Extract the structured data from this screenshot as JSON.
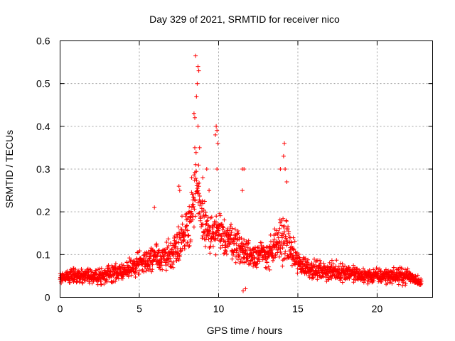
{
  "chart_data": {
    "type": "scatter",
    "title": "Day 329 of 2021, SRMTID for receiver nico",
    "xlabel": "GPS time / hours",
    "ylabel": "SRMTID / TECUs",
    "xlim": [
      0,
      23.5
    ],
    "ylim": [
      0,
      0.6
    ],
    "xticks": [
      0,
      5,
      10,
      15,
      20
    ],
    "xtick_labels": [
      "0",
      "5",
      "10",
      "15",
      "20"
    ],
    "yticks": [
      0,
      0.1,
      0.2,
      0.3,
      0.4,
      0.5,
      0.6
    ],
    "ytick_labels": [
      "0",
      "0.1",
      "0.2",
      "0.3",
      "0.4",
      "0.5",
      "0.6"
    ],
    "grid": true,
    "marker": "+",
    "series": [
      {
        "name": "nico",
        "color": "#ff0000",
        "profile": {
          "t": [
            0,
            1,
            2,
            3,
            4,
            5,
            6,
            7,
            7.5,
            8,
            8.3,
            8.6,
            9,
            9.5,
            9.9,
            10.5,
            11,
            11.5,
            12,
            12.5,
            13,
            13.5,
            14,
            14.3,
            14.7,
            15,
            16,
            17,
            18,
            19,
            20,
            21,
            22,
            22.8
          ],
          "base": [
            0.045,
            0.05,
            0.05,
            0.055,
            0.06,
            0.08,
            0.09,
            0.1,
            0.13,
            0.16,
            0.2,
            0.25,
            0.18,
            0.14,
            0.15,
            0.14,
            0.13,
            0.11,
            0.1,
            0.1,
            0.1,
            0.11,
            0.14,
            0.13,
            0.1,
            0.08,
            0.065,
            0.06,
            0.06,
            0.05,
            0.05,
            0.05,
            0.05,
            0.035
          ],
          "spread": [
            0.02,
            0.025,
            0.025,
            0.03,
            0.03,
            0.04,
            0.045,
            0.05,
            0.06,
            0.08,
            0.1,
            0.12,
            0.08,
            0.06,
            0.07,
            0.06,
            0.055,
            0.05,
            0.045,
            0.045,
            0.045,
            0.06,
            0.08,
            0.07,
            0.05,
            0.04,
            0.03,
            0.03,
            0.03,
            0.025,
            0.025,
            0.025,
            0.025,
            0.015
          ]
        },
        "peaks": [
          {
            "x": 8.55,
            "y": 0.565
          },
          {
            "x": 8.7,
            "y": 0.54
          },
          {
            "x": 8.75,
            "y": 0.53
          },
          {
            "x": 8.65,
            "y": 0.5
          },
          {
            "x": 8.6,
            "y": 0.47
          },
          {
            "x": 8.45,
            "y": 0.43
          },
          {
            "x": 8.5,
            "y": 0.42
          },
          {
            "x": 8.7,
            "y": 0.4
          },
          {
            "x": 8.5,
            "y": 0.35
          },
          {
            "x": 8.8,
            "y": 0.35
          },
          {
            "x": 9.85,
            "y": 0.4
          },
          {
            "x": 9.9,
            "y": 0.39
          },
          {
            "x": 9.8,
            "y": 0.38
          },
          {
            "x": 9.95,
            "y": 0.36
          },
          {
            "x": 9.9,
            "y": 0.3
          },
          {
            "x": 14.15,
            "y": 0.36
          },
          {
            "x": 14.1,
            "y": 0.33
          },
          {
            "x": 14.2,
            "y": 0.3
          },
          {
            "x": 14.3,
            "y": 0.27
          },
          {
            "x": 13.9,
            "y": 0.3
          },
          {
            "x": 11.5,
            "y": 0.3
          },
          {
            "x": 11.6,
            "y": 0.3
          },
          {
            "x": 11.5,
            "y": 0.25
          },
          {
            "x": 7.5,
            "y": 0.26
          },
          {
            "x": 7.55,
            "y": 0.25
          },
          {
            "x": 9.25,
            "y": 0.3
          },
          {
            "x": 9.0,
            "y": 0.28
          },
          {
            "x": 5.95,
            "y": 0.21
          },
          {
            "x": 8.3,
            "y": 0.28
          },
          {
            "x": 9.4,
            "y": 0.25
          },
          {
            "x": 11.7,
            "y": 0.02
          },
          {
            "x": 11.55,
            "y": 0.015
          }
        ]
      }
    ]
  }
}
